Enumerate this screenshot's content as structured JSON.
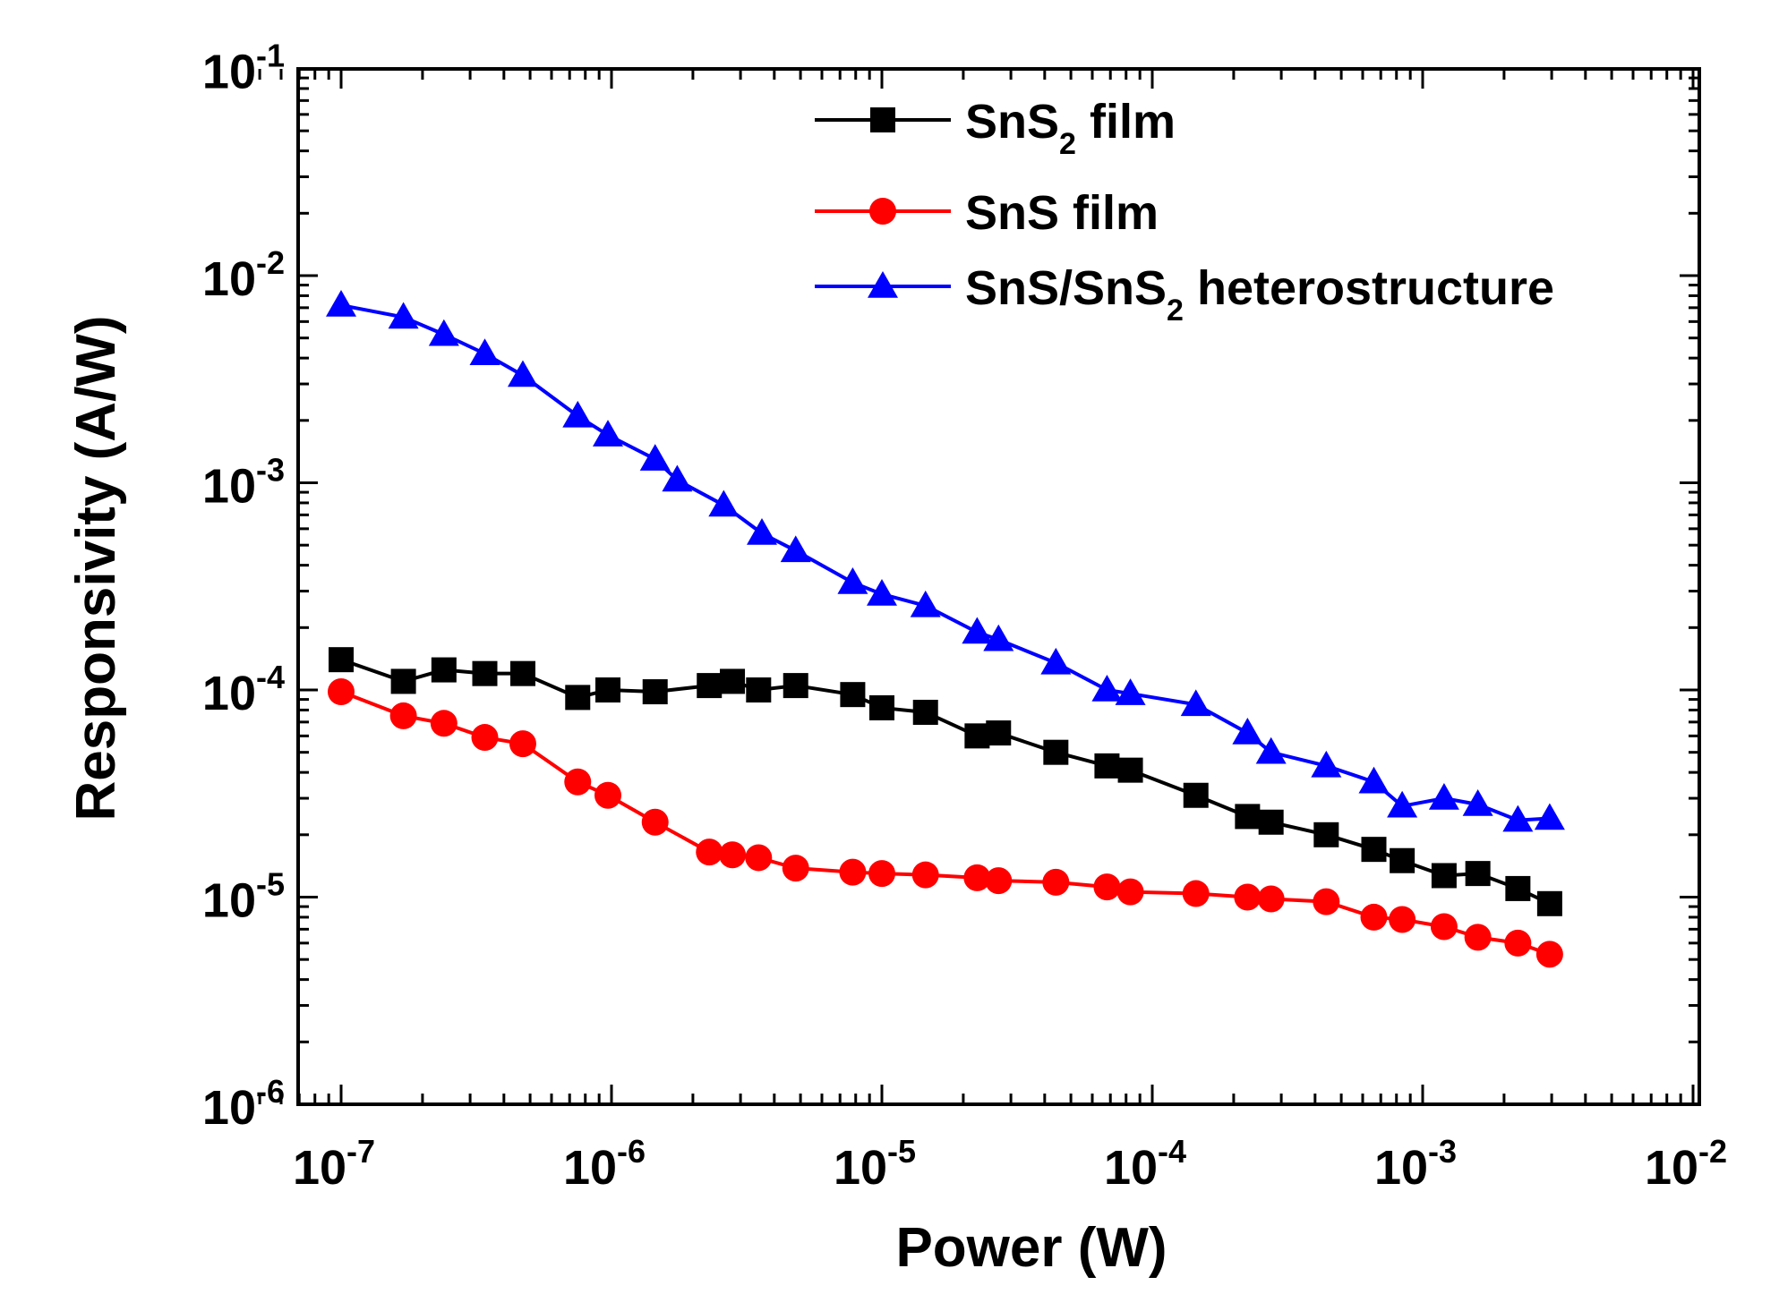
{
  "chart_data": {
    "type": "line",
    "xscale": "log",
    "yscale": "log",
    "xlabel": "Power (W)",
    "ylabel": "Responsivity (A/W)",
    "xlim": [
      5e-08,
      0.01
    ],
    "ylim": [
      1e-06,
      0.1
    ],
    "x_ticks": [
      {
        "mant": "10",
        "exp": "-7"
      },
      {
        "mant": "10",
        "exp": "-6"
      },
      {
        "mant": "10",
        "exp": "-5"
      },
      {
        "mant": "10",
        "exp": "-4"
      },
      {
        "mant": "10",
        "exp": "-3"
      },
      {
        "mant": "10",
        "exp": "-2"
      }
    ],
    "y_ticks": [
      {
        "mant": "10",
        "exp": "-6"
      },
      {
        "mant": "10",
        "exp": "-5"
      },
      {
        "mant": "10",
        "exp": "-4"
      },
      {
        "mant": "10",
        "exp": "-3"
      },
      {
        "mant": "10",
        "exp": "-2"
      },
      {
        "mant": "10",
        "exp": "-1"
      }
    ],
    "legend_position": "top-right",
    "grid": false,
    "series": [
      {
        "name_parts": [
          {
            "t": "SnS"
          },
          {
            "sub": "2"
          },
          {
            "t": " film"
          }
        ],
        "color": "#000000",
        "marker": "square",
        "x": [
          1e-07,
          1.7e-07,
          2.4e-07,
          3.4e-07,
          4.7e-07,
          7.5e-07,
          9.7e-07,
          1.45e-06,
          2.3e-06,
          2.8e-06,
          3.5e-06,
          4.8e-06,
          7.8e-06,
          1e-05,
          1.45e-05,
          2.25e-05,
          2.7e-05,
          4.4e-05,
          6.8e-05,
          8.3e-05,
          0.000145,
          0.000225,
          0.000275,
          0.00044,
          0.00066,
          0.00084,
          0.0012,
          0.0016,
          0.00225,
          0.00295
        ],
        "y": [
          0.00014,
          0.00011,
          0.000125,
          0.00012,
          0.00012,
          9.2e-05,
          0.0001,
          9.8e-05,
          0.000105,
          0.00011,
          0.0001,
          0.000105,
          9.5e-05,
          8.2e-05,
          7.8e-05,
          6e-05,
          6.2e-05,
          5e-05,
          4.3e-05,
          4.1e-05,
          3.1e-05,
          2.45e-05,
          2.3e-05,
          2e-05,
          1.7e-05,
          1.5e-05,
          1.27e-05,
          1.3e-05,
          1.1e-05,
          9.3e-06
        ]
      },
      {
        "name_parts": [
          {
            "t": "SnS  film"
          }
        ],
        "color": "#ff0000",
        "marker": "circle",
        "x": [
          1e-07,
          1.7e-07,
          2.4e-07,
          3.4e-07,
          4.7e-07,
          7.5e-07,
          9.7e-07,
          1.45e-06,
          2.3e-06,
          2.8e-06,
          3.5e-06,
          4.8e-06,
          7.8e-06,
          1e-05,
          1.45e-05,
          2.25e-05,
          2.7e-05,
          4.4e-05,
          6.8e-05,
          8.3e-05,
          0.000145,
          0.000225,
          0.000275,
          0.00044,
          0.00066,
          0.00084,
          0.0012,
          0.0016,
          0.00225,
          0.00295
        ],
        "y": [
          9.8e-05,
          7.5e-05,
          6.9e-05,
          5.9e-05,
          5.5e-05,
          3.6e-05,
          3.1e-05,
          2.3e-05,
          1.65e-05,
          1.6e-05,
          1.55e-05,
          1.38e-05,
          1.32e-05,
          1.3e-05,
          1.28e-05,
          1.24e-05,
          1.2e-05,
          1.18e-05,
          1.12e-05,
          1.06e-05,
          1.04e-05,
          1e-05,
          9.8e-06,
          9.5e-06,
          8e-06,
          7.8e-06,
          7.2e-06,
          6.4e-06,
          6e-06,
          5.3e-06
        ]
      },
      {
        "name_parts": [
          {
            "t": "SnS/SnS"
          },
          {
            "sub": "2"
          },
          {
            "t": " heterostructure"
          }
        ],
        "color": "#0000ff",
        "marker": "triangle",
        "x": [
          1e-07,
          1.7e-07,
          2.4e-07,
          3.4e-07,
          4.7e-07,
          7.5e-07,
          9.7e-07,
          1.45e-06,
          1.75e-06,
          2.6e-06,
          3.6e-06,
          4.8e-06,
          7.8e-06,
          1e-05,
          1.45e-05,
          2.25e-05,
          2.7e-05,
          4.4e-05,
          6.8e-05,
          8.3e-05,
          0.000145,
          0.000225,
          0.000275,
          0.00044,
          0.00066,
          0.00084,
          0.0012,
          0.0016,
          0.00225,
          0.00295
        ],
        "y": [
          0.0072,
          0.0063,
          0.0052,
          0.0042,
          0.0033,
          0.0021,
          0.0017,
          0.0013,
          0.00103,
          0.00078,
          0.00057,
          0.00047,
          0.00033,
          0.00029,
          0.000255,
          0.00019,
          0.000175,
          0.000135,
          0.0001,
          9.6e-05,
          8.5e-05,
          6.2e-05,
          5e-05,
          4.3e-05,
          3.6e-05,
          2.75e-05,
          3e-05,
          2.8e-05,
          2.35e-05,
          2.4e-05
        ]
      }
    ]
  }
}
